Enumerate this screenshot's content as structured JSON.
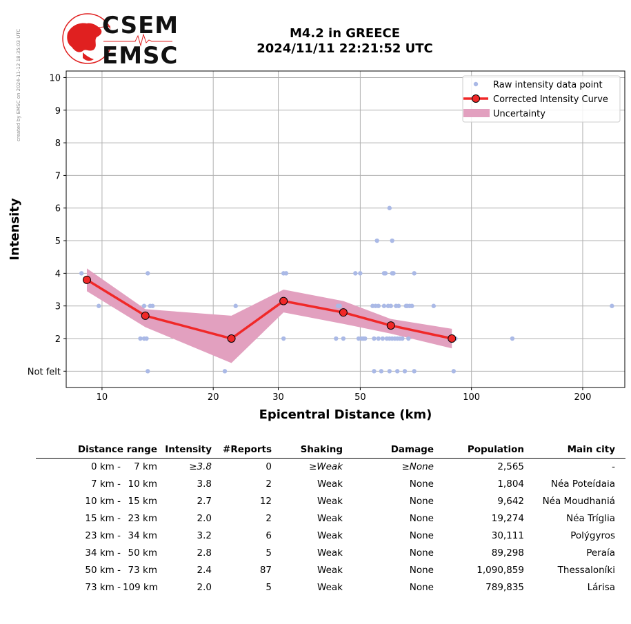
{
  "credit": "created by EMSC on 2024-11-12 18:35:03 UTC",
  "logo": {
    "line1": "CSEM",
    "line2": "EMSC",
    "accent": "#e02020"
  },
  "title": {
    "line1": "M4.2 in GREECE",
    "line2": "2024/11/11 22:21:52 UTC"
  },
  "chart_data": {
    "type": "scatter",
    "xlabel": "Epicentral Distance (km)",
    "ylabel": "Intensity",
    "x_scale": "log",
    "xlim": [
      8,
      260
    ],
    "ylim": [
      0.5,
      10.2
    ],
    "x_ticks": [
      10,
      20,
      30,
      50,
      100,
      200
    ],
    "y_ticks": [
      1,
      2,
      3,
      4,
      5,
      6,
      7,
      8,
      9,
      10
    ],
    "y_tick_labels": [
      "Not felt",
      "2",
      "3",
      "4",
      "5",
      "6",
      "7",
      "8",
      "9",
      "10"
    ],
    "grid": true,
    "legend_position": "top-right",
    "colors": {
      "raw": "#aab9e6",
      "curve": "#f02828",
      "marker_edge": "#000000",
      "uncertainty": "#e2a0bf"
    },
    "legend": [
      "Raw intensity data point",
      "Corrected Intensity Curve",
      "Uncertainty"
    ],
    "raw_points": [
      [
        8.8,
        4
      ],
      [
        9.8,
        3
      ],
      [
        12.7,
        2
      ],
      [
        13.0,
        3
      ],
      [
        13.0,
        2
      ],
      [
        13.2,
        2
      ],
      [
        13.3,
        4
      ],
      [
        13.3,
        1
      ],
      [
        13.5,
        3
      ],
      [
        13.7,
        3
      ],
      [
        21.5,
        1
      ],
      [
        23.0,
        3
      ],
      [
        31.0,
        4
      ],
      [
        31.5,
        4
      ],
      [
        31.0,
        2
      ],
      [
        43.0,
        2
      ],
      [
        43.5,
        3
      ],
      [
        44.0,
        3
      ],
      [
        45.0,
        2
      ],
      [
        48.5,
        4
      ],
      [
        50.0,
        4
      ],
      [
        49.5,
        2
      ],
      [
        50.5,
        2
      ],
      [
        51.0,
        2
      ],
      [
        51.5,
        2
      ],
      [
        54.0,
        3
      ],
      [
        54.5,
        2
      ],
      [
        55.0,
        3
      ],
      [
        55.5,
        5
      ],
      [
        54.5,
        1
      ],
      [
        56.0,
        3
      ],
      [
        56.0,
        2
      ],
      [
        57.0,
        1
      ],
      [
        57.5,
        2
      ],
      [
        58.0,
        3
      ],
      [
        58.0,
        4
      ],
      [
        58.5,
        4
      ],
      [
        59.0,
        2
      ],
      [
        59.5,
        3
      ],
      [
        60.0,
        6
      ],
      [
        60.0,
        2
      ],
      [
        60.0,
        1
      ],
      [
        60.5,
        3
      ],
      [
        61.0,
        4
      ],
      [
        61.0,
        5
      ],
      [
        61.5,
        4
      ],
      [
        61.0,
        2
      ],
      [
        62.0,
        2
      ],
      [
        62.5,
        3
      ],
      [
        63.0,
        2
      ],
      [
        63.5,
        3
      ],
      [
        63.0,
        1
      ],
      [
        64.0,
        2
      ],
      [
        65.0,
        2
      ],
      [
        66.0,
        1
      ],
      [
        66.5,
        3
      ],
      [
        67.0,
        3
      ],
      [
        67.5,
        2
      ],
      [
        68.0,
        3
      ],
      [
        69.0,
        3
      ],
      [
        70.0,
        4
      ],
      [
        70.0,
        1
      ],
      [
        79.0,
        3
      ],
      [
        89.0,
        2
      ],
      [
        89.5,
        1
      ],
      [
        90.5,
        2
      ],
      [
        129.0,
        2
      ],
      [
        240.0,
        3
      ]
    ],
    "curve": {
      "x": [
        9.1,
        13.1,
        22.4,
        31.0,
        45.0,
        60.5,
        88.5
      ],
      "y": [
        3.8,
        2.7,
        2.0,
        3.15,
        2.8,
        2.4,
        2.0
      ]
    },
    "uncertainty": {
      "x": [
        9.1,
        13.1,
        22.4,
        31.0,
        45.0,
        60.5,
        88.5
      ],
      "upper": [
        4.15,
        2.9,
        2.7,
        3.5,
        3.15,
        2.6,
        2.3
      ],
      "lower": [
        3.45,
        2.35,
        1.25,
        2.8,
        2.45,
        2.15,
        1.7
      ]
    }
  },
  "table": {
    "headers": {
      "distance": "Distance range",
      "intensity": "Intensity",
      "reports": "#Reports",
      "shaking": "Shaking",
      "damage": "Damage",
      "population": "Population",
      "city": "Main city"
    },
    "rows": [
      {
        "from": "0 km -",
        "to": "7 km",
        "intensity": "≥3.8",
        "reports": "0",
        "shaking": "≥Weak",
        "damage": "≥None",
        "population": "2,565",
        "city": "-"
      },
      {
        "from": "7 km -",
        "to": "10 km",
        "intensity": "3.8",
        "reports": "2",
        "shaking": "Weak",
        "damage": "None",
        "population": "1,804",
        "city": "Néa Poteídaia"
      },
      {
        "from": "10 km -",
        "to": "15 km",
        "intensity": "2.7",
        "reports": "12",
        "shaking": "Weak",
        "damage": "None",
        "population": "9,642",
        "city": "Néa Moudhaniá"
      },
      {
        "from": "15 km -",
        "to": "23 km",
        "intensity": "2.0",
        "reports": "2",
        "shaking": "Weak",
        "damage": "None",
        "population": "19,274",
        "city": "Néa Tríglia"
      },
      {
        "from": "23 km -",
        "to": "34 km",
        "intensity": "3.2",
        "reports": "6",
        "shaking": "Weak",
        "damage": "None",
        "population": "30,111",
        "city": "Polýgyros"
      },
      {
        "from": "34 km -",
        "to": "50 km",
        "intensity": "2.8",
        "reports": "5",
        "shaking": "Weak",
        "damage": "None",
        "population": "89,298",
        "city": "Peraía"
      },
      {
        "from": "50 km -",
        "to": "73 km",
        "intensity": "2.4",
        "reports": "87",
        "shaking": "Weak",
        "damage": "None",
        "population": "1,090,859",
        "city": "Thessaloníki"
      },
      {
        "from": "73 km -",
        "to": "109 km",
        "intensity": "2.0",
        "reports": "5",
        "shaking": "Weak",
        "damage": "None",
        "population": "789,835",
        "city": "Lárisa"
      }
    ]
  }
}
